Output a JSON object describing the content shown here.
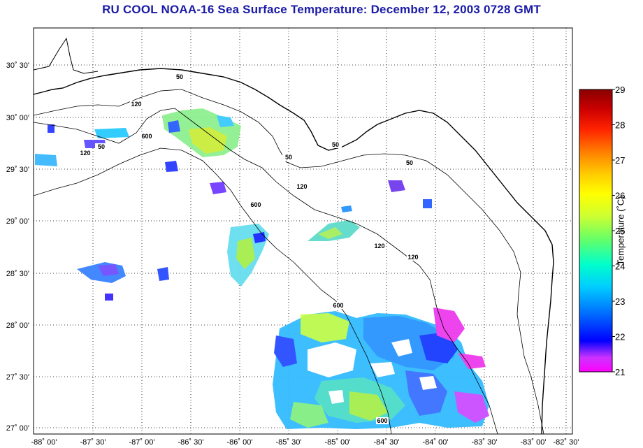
{
  "title": "RU COOL  NOAA-16  Sea Surface Temperature:  December 12, 2003 0728 GMT",
  "map": {
    "lon_ticks": [
      "-88˚ 00'",
      "-87˚ 30'",
      "-87˚ 00'",
      "-86˚ 30'",
      "-86˚ 00'",
      "-85˚ 30'",
      "-85˚ 00'",
      "-84˚ 30'",
      "-84˚ 00'",
      "-83˚ 30'",
      "-83˚ 00'",
      "-82˚ 30'"
    ],
    "lat_ticks": [
      "30˚ 30'",
      "30˚ 00'",
      "29˚ 30'",
      "29˚ 00'",
      "28˚ 30'",
      "28˚ 00'",
      "27˚ 30'",
      "27˚ 00'"
    ],
    "isobath_labels": [
      "50",
      "50",
      "50",
      "50",
      "50",
      "120",
      "120",
      "120",
      "120",
      "120",
      "600",
      "600",
      "600",
      "600"
    ]
  },
  "colorbar": {
    "title": "Temperature (˚C)",
    "ticks": [
      "29",
      "28",
      "27",
      "26",
      "25",
      "24",
      "23",
      "22",
      "21"
    ],
    "stops": [
      "#ff00ff",
      "#9933ff",
      "#0000ff",
      "#0066ff",
      "#00ccff",
      "#00ffcc",
      "#66ff66",
      "#ccff33",
      "#ffff00",
      "#ffcc00",
      "#ff8800",
      "#ff2200",
      "#cc0000",
      "#880000"
    ]
  }
}
